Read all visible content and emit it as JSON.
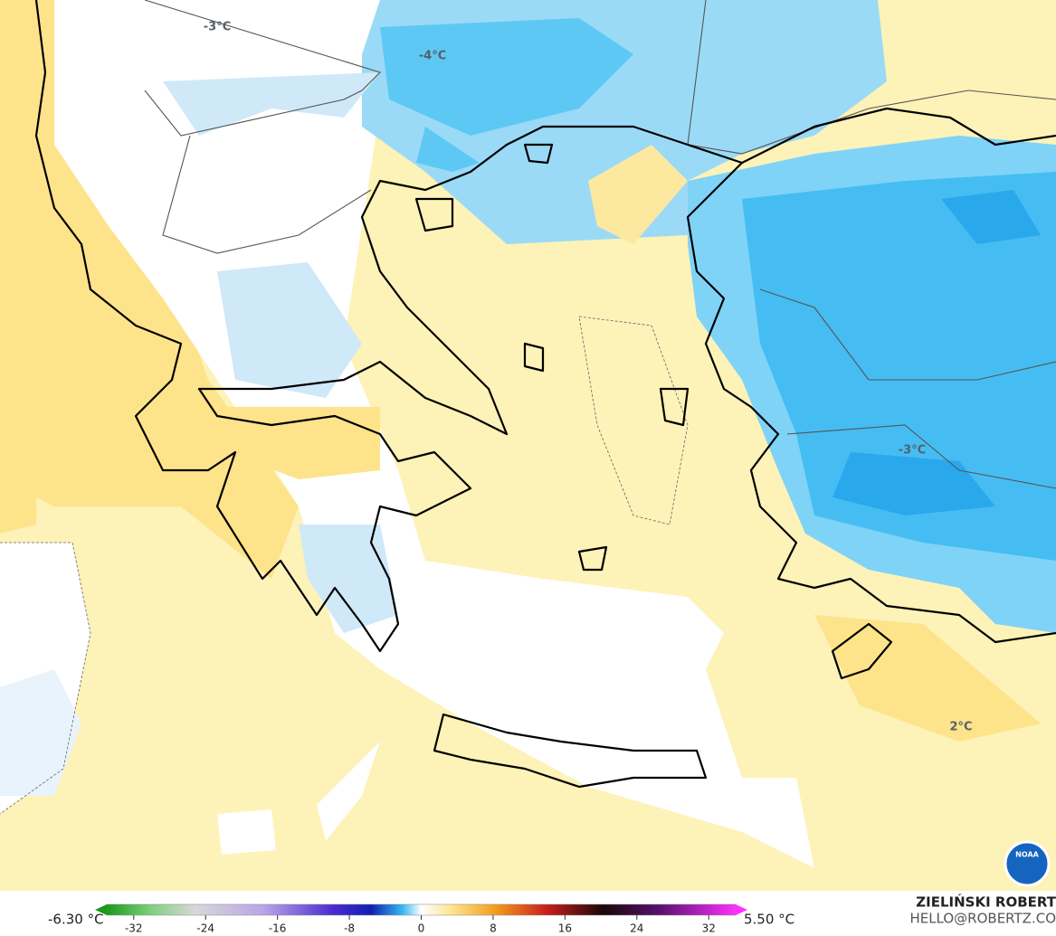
{
  "map": {
    "contour_labels": [
      "-3°C",
      "-4°C",
      "-3°C",
      "2°C"
    ],
    "logo": "NOAA"
  },
  "colorbar": {
    "min_label": "-6.30 °C",
    "max_label": "5.50 °C",
    "lim": [
      -35,
      35
    ],
    "ticks": [
      -32,
      -24,
      -16,
      -8,
      0,
      8,
      16,
      24,
      32
    ]
  },
  "credit": {
    "name": "ZIELIŃSKI ROBERT",
    "email": "HELLO@ROBERTZ.CO"
  }
}
